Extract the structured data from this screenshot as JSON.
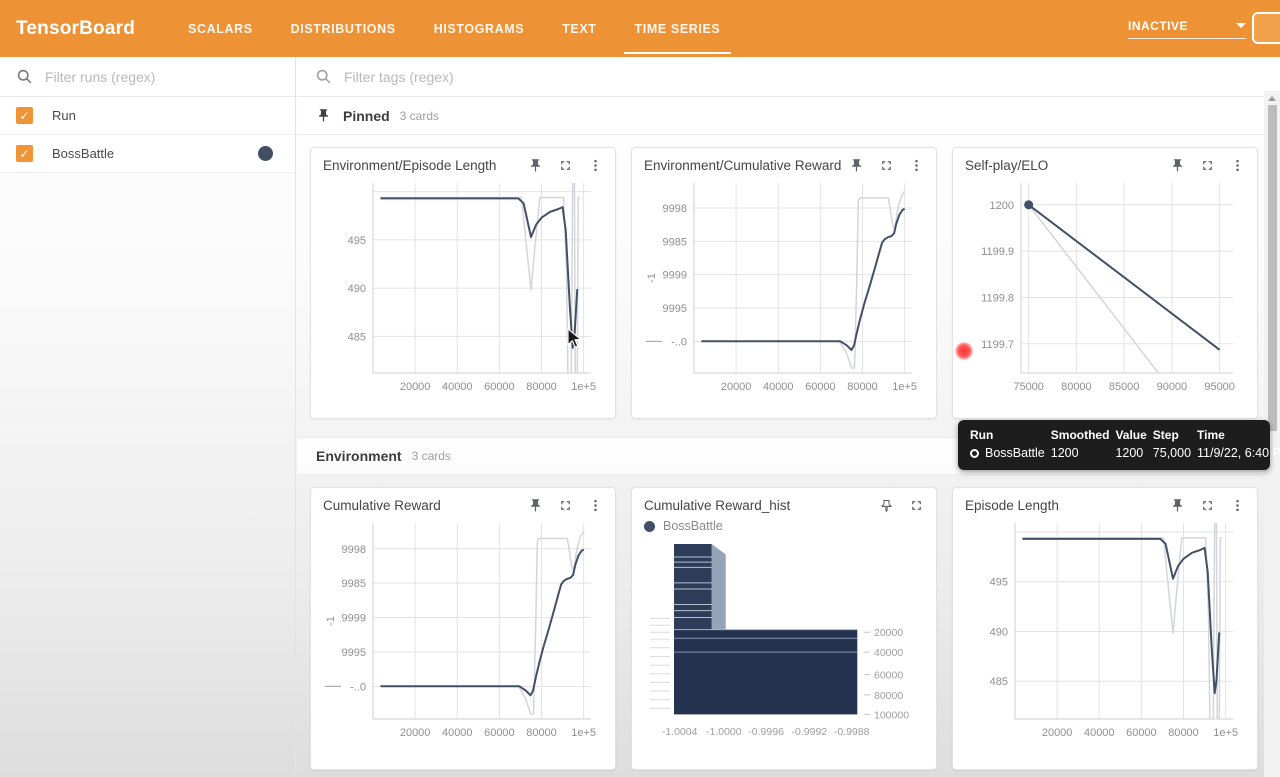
{
  "header": {
    "logo": "TensorBoard",
    "tabs": [
      {
        "label": "SCALARS"
      },
      {
        "label": "DISTRIBUTIONS"
      },
      {
        "label": "HISTOGRAMS"
      },
      {
        "label": "TEXT"
      },
      {
        "label": "TIME SERIES",
        "active": true
      }
    ],
    "status_dropdown": "INACTIVE"
  },
  "colors": {
    "accent": "#ee9236",
    "run_color": "#425066",
    "smoothed_line": "#425066",
    "raw_line": "#d2d5db",
    "grid": "#e3e3e3",
    "hist_front": "#263650",
    "hist_side": "#97a3b8"
  },
  "sidebar": {
    "search_placeholder": "Filter runs (regex)",
    "runs": [
      {
        "label": "Run",
        "checked": true,
        "check": "✓"
      },
      {
        "label": "BossBattle",
        "checked": true,
        "check": "✓",
        "color": "#425066"
      }
    ]
  },
  "main": {
    "search_placeholder": "Filter tags (regex)",
    "sections": [
      {
        "title": "Pinned",
        "count": "3 cards"
      },
      {
        "title": "Environment",
        "count": "3 cards"
      }
    ]
  },
  "cards": [
    {
      "title": "Environment/Episode Length",
      "chart": "episode_length"
    },
    {
      "title": "Environment/Cumulative Reward",
      "chart": "cumulative_reward"
    },
    {
      "title": "Self-play/ELO",
      "chart": "elo"
    },
    {
      "title": "Cumulative Reward",
      "chart": "cumulative_reward"
    },
    {
      "title": "Cumulative Reward_hist",
      "chart": "cumulative_hist",
      "legend": "BossBattle"
    },
    {
      "title": "Episode Length",
      "chart": "episode_length"
    }
  ],
  "tooltip": {
    "headers": [
      "Run",
      "Smoothed",
      "Value",
      "Step",
      "Time"
    ],
    "row": {
      "run": "BossBattle",
      "smoothed": "1200",
      "value": "1200",
      "step": "75,000",
      "time": "11/9/22, 6:40 PM"
    }
  },
  "chart_data": {
    "episode_length": {
      "type": "line",
      "title": "Environment/Episode Length",
      "xlim": [
        0,
        103500
      ],
      "ylim": [
        481.2,
        500.9
      ],
      "xticks": [
        {
          "v": 20000,
          "l": "20000"
        },
        {
          "v": 40000,
          "l": "40000"
        },
        {
          "v": 60000,
          "l": "60000"
        },
        {
          "v": 80000,
          "l": "80000"
        },
        {
          "v": 100000,
          "l": "1e+5"
        }
      ],
      "yticks": [
        {
          "v": 485,
          "l": "485"
        },
        {
          "v": 490,
          "l": "490"
        },
        {
          "v": 495,
          "l": "495"
        },
        {
          "v": 500,
          "l": ""
        }
      ],
      "margins": {
        "l": 50,
        "r": 12,
        "t": 6,
        "b": 26
      },
      "series": [
        {
          "name": "BossBattle (raw)",
          "color": "#d2d5db",
          "width": 1.5,
          "points": [
            [
              3500,
              499.4
            ],
            [
              70500,
              499.4
            ],
            [
              72800,
              494.5
            ],
            [
              75000,
              489.8
            ],
            [
              77200,
              495
            ],
            [
              79200,
              499.4
            ],
            [
              90500,
              499.4
            ],
            [
              91800,
              492
            ],
            [
              92800,
              477
            ],
            [
              94000,
              477
            ],
            [
              94800,
              501.8
            ],
            [
              95600,
              501.8
            ],
            [
              96100,
              477
            ],
            [
              96900,
              477
            ],
            [
              97400,
              499.4
            ],
            [
              98200,
              499.4
            ]
          ]
        },
        {
          "name": "BossBattle",
          "color": "#425066",
          "width": 2,
          "points": [
            [
              3500,
              499.3
            ],
            [
              69000,
              499.3
            ],
            [
              71500,
              498.8
            ],
            [
              75000,
              495.3
            ],
            [
              77500,
              496.6
            ],
            [
              80000,
              497.3
            ],
            [
              84000,
              497.9
            ],
            [
              88000,
              498.2
            ],
            [
              90000,
              498.4
            ],
            [
              91500,
              496
            ],
            [
              93500,
              488
            ],
            [
              94800,
              483.8
            ],
            [
              95600,
              485
            ],
            [
              97000,
              489.9
            ]
          ]
        }
      ]
    },
    "cumulative_reward": {
      "type": "line",
      "title": "Environment/Cumulative Reward",
      "xlim": [
        0,
        103500
      ],
      "ylim": [
        -1.0000475,
        -0.9997625
      ],
      "xticks": [
        {
          "v": 20000,
          "l": "20000"
        },
        {
          "v": 40000,
          "l": "40000"
        },
        {
          "v": 60000,
          "l": "60000"
        },
        {
          "v": 80000,
          "l": "80000"
        },
        {
          "v": 100000,
          "l": "1e+5"
        }
      ],
      "yticks": [
        {
          "v": -0.9998,
          "l": "9998"
        },
        {
          "v": -0.99985,
          "l": "9985"
        },
        {
          "v": -0.9999,
          "l": "9999"
        },
        {
          "v": -0.99995,
          "l": "9995"
        },
        {
          "v": -1.0,
          "l": "-..0"
        }
      ],
      "side_label": "-1",
      "dash_at": -1.0,
      "margins": {
        "l": 50,
        "r": 12,
        "t": 6,
        "b": 26
      },
      "series": [
        {
          "name": "BossBattle (raw)",
          "color": "#d2d5db",
          "width": 1.5,
          "points": [
            [
              3500,
              -1.0
            ],
            [
              69000,
              -1.0
            ],
            [
              72500,
              -1.000018
            ],
            [
              74800,
              -1.00004
            ],
            [
              76200,
              -1.00004
            ],
            [
              77200,
              -0.99992
            ],
            [
              78000,
              -0.99979
            ],
            [
              78800,
              -0.999785
            ],
            [
              92300,
              -0.999785
            ],
            [
              94300,
              -0.999824
            ],
            [
              95300,
              -0.999832
            ],
            [
              96800,
              -0.9998
            ],
            [
              98500,
              -0.999782
            ],
            [
              100000,
              -0.999775
            ]
          ]
        },
        {
          "name": "BossBattle",
          "color": "#425066",
          "width": 2,
          "points": [
            [
              3500,
              -1.0
            ],
            [
              69500,
              -1.0
            ],
            [
              72500,
              -1.000006
            ],
            [
              74800,
              -1.000013
            ],
            [
              76000,
              -1.000006
            ],
            [
              77300,
              -0.999987
            ],
            [
              79000,
              -0.999965
            ],
            [
              81000,
              -0.999942
            ],
            [
              83500,
              -0.999916
            ],
            [
              86000,
              -0.999889
            ],
            [
              88000,
              -0.999866
            ],
            [
              89300,
              -0.999852
            ],
            [
              90500,
              -0.999847
            ],
            [
              92000,
              -0.999844
            ],
            [
              93800,
              -0.999842
            ],
            [
              95000,
              -0.999838
            ],
            [
              96000,
              -0.999824
            ],
            [
              97500,
              -0.99981
            ],
            [
              99000,
              -0.999803
            ],
            [
              100000,
              -0.999801
            ]
          ]
        }
      ]
    },
    "elo": {
      "type": "line",
      "title": "Self-play/ELO",
      "xlim": [
        74200,
        96400
      ],
      "ylim": [
        1199.637,
        1200.047
      ],
      "xticks": [
        {
          "v": 75000,
          "l": "75000"
        },
        {
          "v": 80000,
          "l": "80000"
        },
        {
          "v": 85000,
          "l": "85000"
        },
        {
          "v": 90000,
          "l": "90000"
        },
        {
          "v": 95000,
          "l": "95000"
        }
      ],
      "yticks": [
        {
          "v": 1199.7,
          "l": "1199.7"
        },
        {
          "v": 1199.8,
          "l": "1199.8"
        },
        {
          "v": 1199.9,
          "l": "1199.9"
        },
        {
          "v": 1200,
          "l": "1200"
        }
      ],
      "margins": {
        "l": 56,
        "r": 12,
        "t": 6,
        "b": 26
      },
      "series": [
        {
          "name": "BossBattle (raw)",
          "color": "#d2d5db",
          "width": 1.5,
          "points": [
            [
              75000,
              1200.0
            ],
            [
              89400,
              1199.615
            ]
          ]
        },
        {
          "name": "BossBattle",
          "color": "#425066",
          "width": 2,
          "points": [
            [
              75000,
              1200.0
            ],
            [
              95000,
              1199.687
            ]
          ]
        }
      ],
      "marker": {
        "x": 75000,
        "y": 1200,
        "color": "#425066",
        "r": 4.5
      }
    },
    "cumulative_hist": {
      "type": "histogram3d",
      "title": "Cumulative Reward_hist",
      "legend": "BossBattle",
      "xlabels": [
        {
          "l": "-1.0004",
          "x": 0.03
        },
        {
          "l": "-1.0000",
          "x": 0.265
        },
        {
          "l": "-0.9996",
          "x": 0.49
        },
        {
          "l": "-0.9992",
          "x": 0.72
        },
        {
          "l": "-0.9988",
          "x": 0.945
        }
      ],
      "steplabels": [
        {
          "l": "20000",
          "y": 0.51
        },
        {
          "l": "40000",
          "y": 0.625
        },
        {
          "l": "60000",
          "y": 0.755
        },
        {
          "l": "80000",
          "y": 0.872
        },
        {
          "l": "100000",
          "y": 0.985
        }
      ],
      "shapes": [
        {
          "pts": [
            [
              0.2,
              0.0
            ],
            [
              0.275,
              0.06
            ],
            [
              0.275,
              0.555
            ],
            [
              0.2,
              0.495
            ]
          ],
          "fill": "#97a3b8"
        },
        {
          "rect": [
            0.0,
            0.0,
            0.2,
            0.495
          ],
          "fill": "#2c3c59"
        },
        {
          "rect": [
            0.0,
            0.495,
            0.975,
            0.49
          ],
          "fill": "#243450"
        }
      ],
      "stripes": [
        {
          "x0": 0,
          "x1": 0.2,
          "y": 0.075,
          "c": "#b8c0cf"
        },
        {
          "x0": 0,
          "x1": 0.2,
          "y": 0.105,
          "c": "#b8c0cf"
        },
        {
          "x0": 0,
          "x1": 0.2,
          "y": 0.135,
          "c": "#b8c0cf"
        },
        {
          "x0": 0,
          "x1": 0.2,
          "y": 0.225,
          "c": "#b8c0cf"
        },
        {
          "x0": 0,
          "x1": 0.2,
          "y": 0.26,
          "c": "#b8c0cf"
        },
        {
          "x0": 0,
          "x1": 0.2,
          "y": 0.35,
          "c": "#b8c0cf"
        },
        {
          "x0": 0,
          "x1": 0.2,
          "y": 0.385,
          "c": "#b8c0cf"
        },
        {
          "x0": 0,
          "x1": 0.2,
          "y": 0.425,
          "c": "#b8c0cf"
        },
        {
          "x0": 0,
          "x1": 0.975,
          "y": 0.495,
          "c": "#aab3c4"
        },
        {
          "x0": 0,
          "x1": 0.975,
          "y": 0.545,
          "c": "#8794ad"
        },
        {
          "x0": 0,
          "x1": 0.975,
          "y": 0.625,
          "c": "#8794ad"
        }
      ],
      "left_dashes": [
        0.43,
        0.47,
        0.51,
        0.55,
        0.6,
        0.65,
        0.7,
        0.75,
        0.8,
        0.85,
        0.9,
        0.95
      ]
    }
  }
}
